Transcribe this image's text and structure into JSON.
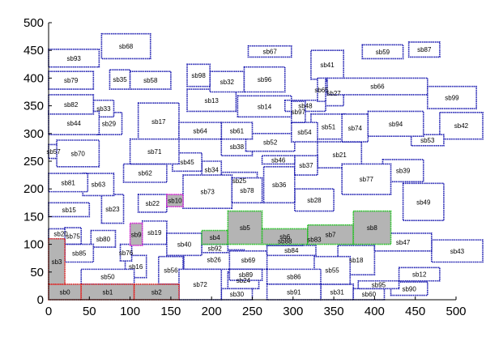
{
  "chart_data": {
    "type": "block-layout",
    "xlim": [
      0,
      500
    ],
    "ylim": [
      0,
      500
    ],
    "x_ticks": [
      "0",
      "50",
      "100",
      "150",
      "200",
      "250",
      "300",
      "350",
      "400",
      "450",
      "500"
    ],
    "y_ticks": [
      "0",
      "50",
      "100",
      "150",
      "200",
      "250",
      "300",
      "350",
      "400",
      "450",
      "500"
    ],
    "grid": false,
    "colors": {
      "default_border": "#1c1cb0",
      "gray_fill": "#b4b4b4",
      "red_border": "#e02020",
      "green_border": "#20c020",
      "magenta_border": "#d020d0"
    },
    "blocks": [
      {
        "label": "sb0",
        "x0": 0,
        "y0": 0,
        "x1": 40,
        "y1": 28,
        "fill": "gray",
        "border": "red"
      },
      {
        "label": "sb1",
        "x0": 40,
        "y0": 0,
        "x1": 105,
        "y1": 28,
        "fill": "gray",
        "border": "red"
      },
      {
        "label": "sb2",
        "x0": 105,
        "y0": 0,
        "x1": 160,
        "y1": 28,
        "fill": "gray",
        "border": "red"
      },
      {
        "label": "sb3",
        "x0": 0,
        "y0": 28,
        "x1": 20,
        "y1": 110,
        "fill": "gray",
        "border": "red"
      },
      {
        "label": "sb4",
        "x0": 188,
        "y0": 100,
        "x1": 220,
        "y1": 125,
        "fill": "gray",
        "border": "green"
      },
      {
        "label": "sb5",
        "x0": 220,
        "y0": 100,
        "x1": 262,
        "y1": 160,
        "fill": "gray",
        "border": "green"
      },
      {
        "label": "sb6",
        "x0": 262,
        "y0": 100,
        "x1": 318,
        "y1": 128,
        "fill": "gray",
        "border": "green"
      },
      {
        "label": "sb7",
        "x0": 318,
        "y0": 100,
        "x1": 374,
        "y1": 135,
        "fill": "gray",
        "border": "green"
      },
      {
        "label": "sb8",
        "x0": 374,
        "y0": 100,
        "x1": 420,
        "y1": 160,
        "fill": "gray",
        "border": "green"
      },
      {
        "label": "sb9",
        "x0": 100,
        "y0": 98,
        "x1": 115,
        "y1": 138,
        "fill": "gray",
        "border": "magenta"
      },
      {
        "label": "sb10",
        "x0": 145,
        "y0": 168,
        "x1": 165,
        "y1": 190,
        "fill": "gray",
        "border": "magenta"
      },
      {
        "label": "sb12",
        "x0": 430,
        "y0": 34,
        "x1": 480,
        "y1": 58
      },
      {
        "label": "sb13",
        "x0": 170,
        "y0": 340,
        "x1": 230,
        "y1": 380
      },
      {
        "label": "sb14",
        "x0": 232,
        "y0": 330,
        "x1": 298,
        "y1": 368
      },
      {
        "label": "sb15",
        "x0": 0,
        "y0": 150,
        "x1": 50,
        "y1": 175
      },
      {
        "label": "sb16",
        "x0": 94,
        "y0": 40,
        "x1": 120,
        "y1": 80
      },
      {
        "label": "sb17",
        "x0": 110,
        "y0": 288,
        "x1": 160,
        "y1": 355
      },
      {
        "label": "sb18",
        "x0": 355,
        "y0": 45,
        "x1": 400,
        "y1": 98
      },
      {
        "label": "sb19",
        "x0": 115,
        "y0": 100,
        "x1": 145,
        "y1": 142
      },
      {
        "label": "sb20",
        "x0": 0,
        "y0": 110,
        "x1": 30,
        "y1": 128
      },
      {
        "label": "sb21",
        "x0": 330,
        "y0": 238,
        "x1": 384,
        "y1": 285
      },
      {
        "label": "sb22",
        "x0": 110,
        "y0": 158,
        "x1": 145,
        "y1": 190
      },
      {
        "label": "sb23",
        "x0": 65,
        "y0": 138,
        "x1": 92,
        "y1": 190
      },
      {
        "label": "sb24",
        "x0": 220,
        "y0": 20,
        "x1": 258,
        "y1": 50
      },
      {
        "label": "sb25",
        "x0": 212,
        "y0": 200,
        "x1": 256,
        "y1": 230
      },
      {
        "label": "sb26",
        "x0": 166,
        "y0": 55,
        "x1": 240,
        "y1": 90
      },
      {
        "label": "sb27",
        "x0": 338,
        "y0": 350,
        "x1": 362,
        "y1": 395
      },
      {
        "label": "sb28",
        "x0": 302,
        "y0": 160,
        "x1": 350,
        "y1": 200
      },
      {
        "label": "sb29",
        "x0": 58,
        "y0": 298,
        "x1": 90,
        "y1": 338
      },
      {
        "label": "sb30",
        "x0": 212,
        "y0": 0,
        "x1": 250,
        "y1": 20
      },
      {
        "label": "sb31",
        "x0": 334,
        "y0": 0,
        "x1": 374,
        "y1": 28
      },
      {
        "label": "sb32",
        "x0": 198,
        "y0": 375,
        "x1": 240,
        "y1": 412
      },
      {
        "label": "sb33",
        "x0": 55,
        "y0": 330,
        "x1": 80,
        "y1": 360
      },
      {
        "label": "sb34",
        "x0": 188,
        "y0": 220,
        "x1": 212,
        "y1": 250
      },
      {
        "label": "sb35",
        "x0": 75,
        "y0": 380,
        "x1": 100,
        "y1": 415
      },
      {
        "label": "sb36",
        "x0": 264,
        "y0": 175,
        "x1": 302,
        "y1": 240
      },
      {
        "label": "sb37",
        "x0": 302,
        "y0": 225,
        "x1": 330,
        "y1": 260
      },
      {
        "label": "sb38",
        "x0": 212,
        "y0": 260,
        "x1": 250,
        "y1": 292
      },
      {
        "label": "sb39",
        "x0": 410,
        "y0": 213,
        "x1": 460,
        "y1": 253
      },
      {
        "label": "sb40",
        "x0": 145,
        "y0": 80,
        "x1": 188,
        "y1": 120
      },
      {
        "label": "sb41",
        "x0": 322,
        "y0": 398,
        "x1": 362,
        "y1": 450
      },
      {
        "label": "sb42",
        "x0": 480,
        "y0": 290,
        "x1": 545,
        "y1": 338
      },
      {
        "label": "sb43",
        "x0": 470,
        "y0": 68,
        "x1": 545,
        "y1": 108
      },
      {
        "label": "sb44",
        "x0": 0,
        "y0": 298,
        "x1": 62,
        "y1": 340
      },
      {
        "label": "sb45",
        "x0": 152,
        "y0": 232,
        "x1": 188,
        "y1": 265
      },
      {
        "label": "sb46",
        "x0": 262,
        "y0": 245,
        "x1": 302,
        "y1": 260
      },
      {
        "label": "sb47",
        "x0": 400,
        "y0": 88,
        "x1": 470,
        "y1": 120
      },
      {
        "label": "sb48",
        "x0": 290,
        "y0": 340,
        "x1": 340,
        "y1": 360
      },
      {
        "label": "sb49",
        "x0": 435,
        "y0": 143,
        "x1": 485,
        "y1": 210
      },
      {
        "label": "sb50",
        "x0": 40,
        "y0": 28,
        "x1": 105,
        "y1": 55
      },
      {
        "label": "sb51",
        "x0": 322,
        "y0": 290,
        "x1": 365,
        "y1": 335
      },
      {
        "label": "sb52",
        "x0": 242,
        "y0": 268,
        "x1": 302,
        "y1": 300
      },
      {
        "label": "sb53",
        "x0": 445,
        "y0": 278,
        "x1": 485,
        "y1": 298
      },
      {
        "label": "sb54",
        "x0": 298,
        "y0": 285,
        "x1": 330,
        "y1": 320
      },
      {
        "label": "sb55",
        "x0": 326,
        "y0": 28,
        "x1": 370,
        "y1": 78
      },
      {
        "label": "sb56",
        "x0": 135,
        "y0": 28,
        "x1": 165,
        "y1": 78
      },
      {
        "label": "sb57",
        "x0": 0,
        "y0": 255,
        "x1": 12,
        "y1": 280
      },
      {
        "label": "sb58",
        "x0": 100,
        "y0": 380,
        "x1": 150,
        "y1": 412
      },
      {
        "label": "sb59",
        "x0": 385,
        "y0": 435,
        "x1": 435,
        "y1": 460
      },
      {
        "label": "sb60",
        "x0": 374,
        "y0": 0,
        "x1": 412,
        "y1": 20
      },
      {
        "label": "sb61",
        "x0": 212,
        "y0": 290,
        "x1": 250,
        "y1": 320
      },
      {
        "label": "sb62",
        "x0": 92,
        "y0": 212,
        "x1": 145,
        "y1": 245
      },
      {
        "label": "sb63",
        "x0": 42,
        "y0": 188,
        "x1": 80,
        "y1": 228
      },
      {
        "label": "sb64",
        "x0": 160,
        "y0": 290,
        "x1": 212,
        "y1": 320
      },
      {
        "label": "sb65",
        "x0": 330,
        "y0": 358,
        "x1": 340,
        "y1": 400
      },
      {
        "label": "sb66",
        "x0": 342,
        "y0": 370,
        "x1": 465,
        "y1": 400
      },
      {
        "label": "sb67",
        "x0": 245,
        "y0": 438,
        "x1": 298,
        "y1": 458
      },
      {
        "label": "sb68",
        "x0": 65,
        "y0": 435,
        "x1": 125,
        "y1": 480
      },
      {
        "label": "sb69",
        "x0": 222,
        "y0": 55,
        "x1": 268,
        "y1": 88
      },
      {
        "label": "sb70",
        "x0": 10,
        "y0": 240,
        "x1": 62,
        "y1": 288
      },
      {
        "label": "sb71",
        "x0": 100,
        "y0": 245,
        "x1": 160,
        "y1": 290
      },
      {
        "label": "sb72",
        "x0": 160,
        "y0": 0,
        "x1": 212,
        "y1": 55
      },
      {
        "label": "sb73",
        "x0": 165,
        "y0": 165,
        "x1": 225,
        "y1": 225
      },
      {
        "label": "sb74",
        "x0": 360,
        "y0": 285,
        "x1": 392,
        "y1": 335
      },
      {
        "label": "sb75",
        "x0": 20,
        "y0": 100,
        "x1": 40,
        "y1": 130
      },
      {
        "label": "sb76",
        "x0": 88,
        "y0": 70,
        "x1": 102,
        "y1": 100
      },
      {
        "label": "sb77",
        "x0": 360,
        "y0": 190,
        "x1": 420,
        "y1": 245
      },
      {
        "label": "sb78",
        "x0": 225,
        "y0": 175,
        "x1": 262,
        "y1": 220
      },
      {
        "label": "sb79",
        "x0": 0,
        "y0": 380,
        "x1": 55,
        "y1": 412
      },
      {
        "label": "sb80",
        "x0": 52,
        "y0": 95,
        "x1": 82,
        "y1": 125
      },
      {
        "label": "sb81",
        "x0": 0,
        "y0": 195,
        "x1": 48,
        "y1": 228
      },
      {
        "label": "sb82",
        "x0": 0,
        "y0": 335,
        "x1": 55,
        "y1": 370
      },
      {
        "label": "sb83",
        "x0": 312,
        "y0": 104,
        "x1": 340,
        "y1": 114
      },
      {
        "label": "sb84",
        "x0": 268,
        "y0": 80,
        "x1": 328,
        "y1": 98
      },
      {
        "label": "sb85",
        "x0": 20,
        "y0": 68,
        "x1": 55,
        "y1": 100
      },
      {
        "label": "sb86",
        "x0": 268,
        "y0": 28,
        "x1": 334,
        "y1": 55
      },
      {
        "label": "sb87",
        "x0": 442,
        "y0": 438,
        "x1": 480,
        "y1": 465
      },
      {
        "label": "sb88",
        "x0": 268,
        "y0": 98,
        "x1": 312,
        "y1": 114
      },
      {
        "label": "sb89",
        "x0": 222,
        "y0": 35,
        "x1": 262,
        "y1": 55
      },
      {
        "label": "sb90",
        "x0": 420,
        "y0": 8,
        "x1": 465,
        "y1": 32
      },
      {
        "label": "sb91",
        "x0": 268,
        "y0": 0,
        "x1": 334,
        "y1": 28
      },
      {
        "label": "sb92",
        "x0": 188,
        "y0": 85,
        "x1": 220,
        "y1": 100
      },
      {
        "label": "sb93",
        "x0": 0,
        "y0": 420,
        "x1": 62,
        "y1": 452
      },
      {
        "label": "sb94",
        "x0": 392,
        "y0": 295,
        "x1": 460,
        "y1": 340
      },
      {
        "label": "sb95",
        "x0": 380,
        "y0": 20,
        "x1": 430,
        "y1": 34
      },
      {
        "label": "sb96",
        "x0": 240,
        "y0": 375,
        "x1": 290,
        "y1": 420
      },
      {
        "label": "sb97",
        "x0": 298,
        "y0": 320,
        "x1": 315,
        "y1": 358
      },
      {
        "label": "sb98",
        "x0": 170,
        "y0": 385,
        "x1": 198,
        "y1": 425
      },
      {
        "label": "sb99",
        "x0": 465,
        "y0": 345,
        "x1": 525,
        "y1": 385
      }
    ]
  }
}
